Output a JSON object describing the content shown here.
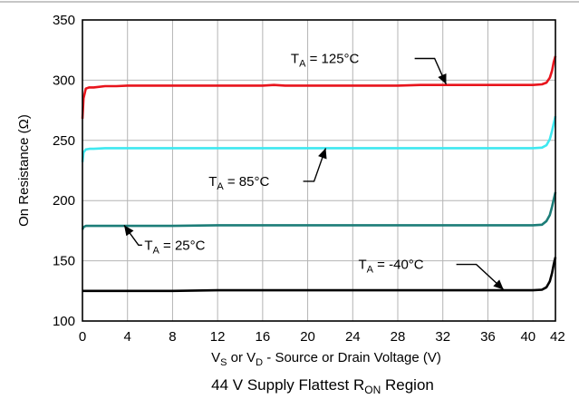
{
  "chart_data": {
    "type": "line",
    "title": "",
    "caption": {
      "main": "44 V Supply Flattest R",
      "sub": "ON",
      "rest": " Region"
    },
    "xlabel": {
      "p1": "V",
      "s1": "S",
      "p2": " or V",
      "s2": "D",
      "p3": " - Source or Drain Voltage (V)"
    },
    "ylabel": "On Resistance (Ω)",
    "xlim": [
      0,
      42
    ],
    "ylim": [
      100,
      350
    ],
    "xticks": [
      0,
      4,
      8,
      12,
      16,
      20,
      24,
      28,
      32,
      36,
      40,
      42
    ],
    "yticks": [
      100,
      150,
      200,
      250,
      300,
      350
    ],
    "grid": true,
    "series": [
      {
        "name": "TA = 125°C",
        "label": {
          "pre": "T",
          "sub": "A",
          "post": " = 125°C"
        },
        "color": "#e8141c",
        "x": [
          0,
          0.1,
          0.3,
          0.6,
          1,
          2,
          3,
          4,
          6,
          8,
          10,
          12,
          14,
          16,
          17,
          18,
          20,
          22,
          24,
          26,
          28,
          30,
          32,
          34,
          36,
          38,
          40,
          40.8,
          41.2,
          41.5,
          41.7,
          41.85,
          42
        ],
        "y": [
          268,
          285,
          293,
          294,
          294,
          295,
          295,
          295.5,
          295.5,
          295.5,
          295.5,
          295.5,
          295.5,
          295.5,
          296,
          295.5,
          295.5,
          295.5,
          295.5,
          295.5,
          295.5,
          296,
          296,
          296,
          296,
          296,
          296,
          296.5,
          298,
          302,
          308,
          315,
          320
        ]
      },
      {
        "name": "TA = 85°C",
        "label": {
          "pre": "T",
          "sub": "A",
          "post": " = 85°C"
        },
        "color": "#3ee8f0",
        "x": [
          0,
          0.1,
          0.3,
          0.6,
          1,
          2,
          4,
          8,
          12,
          16,
          20,
          24,
          28,
          32,
          36,
          40,
          40.8,
          41.2,
          41.5,
          41.7,
          41.85,
          42
        ],
        "y": [
          232,
          240,
          242.5,
          243,
          243,
          243.5,
          243.5,
          243.5,
          243.5,
          243.5,
          243.5,
          243.5,
          243.5,
          243.5,
          243.5,
          243.5,
          244,
          246,
          251,
          258,
          264,
          270
        ]
      },
      {
        "name": "TA = 25°C",
        "label": {
          "pre": "T",
          "sub": "A",
          "post": " = 25°C"
        },
        "color": "#1c7d78",
        "x": [
          0,
          0.1,
          0.3,
          0.6,
          1,
          2,
          4,
          8,
          12,
          16,
          20,
          24,
          28,
          32,
          36,
          40,
          40.8,
          41.2,
          41.5,
          41.7,
          41.85,
          42
        ],
        "y": [
          176,
          178,
          179,
          179,
          179,
          179,
          179,
          179,
          179.5,
          179.5,
          179.5,
          179.5,
          179.5,
          179.5,
          179.5,
          179.5,
          180,
          183,
          188,
          195,
          201,
          207
        ]
      },
      {
        "name": "TA = -40°C",
        "label": {
          "pre": "T",
          "sub": "A",
          "post": " = -40°C"
        },
        "color": "#000000",
        "x": [
          0,
          0.1,
          0.3,
          0.6,
          1,
          2,
          4,
          8,
          12,
          16,
          20,
          24,
          28,
          32,
          36,
          40,
          40.8,
          41.2,
          41.5,
          41.7,
          41.85,
          42
        ],
        "y": [
          125,
          125,
          125,
          125,
          125,
          125,
          125,
          125,
          125.5,
          125.5,
          125.5,
          125.5,
          125.5,
          125.5,
          125.5,
          125.5,
          126,
          128,
          133,
          140,
          147,
          153
        ]
      }
    ]
  }
}
